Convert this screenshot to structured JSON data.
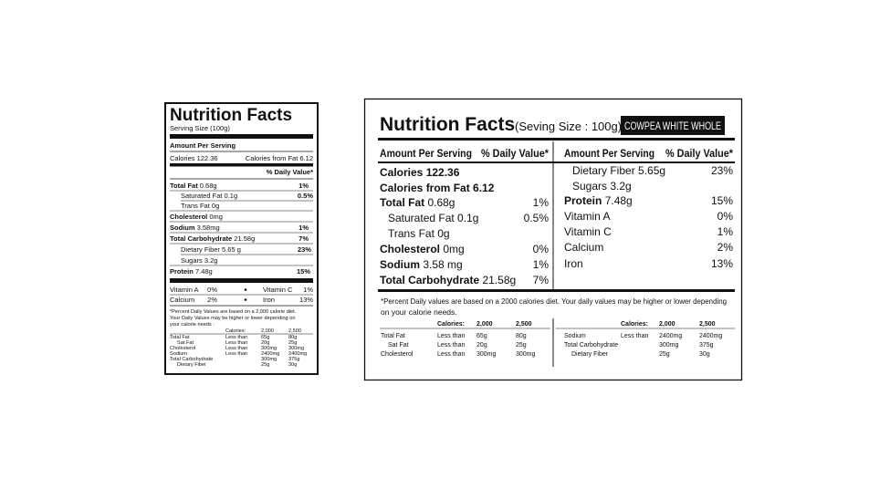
{
  "left_label": {
    "title": "Nutrition Facts",
    "serving": "Serving Size (100g)",
    "amount_per_serving": "Amount Per Serving",
    "calories": "Calories 122.36",
    "calories_from_fat": "Calories from Fat 6.12",
    "daily_value_header": "% Daily Value*",
    "nutrients": [
      {
        "name": "Total Fat",
        "amount": "0.68g",
        "dv": "1%"
      },
      {
        "name": "Saturated Fat",
        "amount": "0.1g",
        "dv": "0.5%"
      },
      {
        "name": "Trans Fat",
        "amount": "0g"
      },
      {
        "name": "Cholesterol",
        "amount": "0mg"
      },
      {
        "name": "Sodium",
        "amount": "3.58mg",
        "dv": "1%"
      },
      {
        "name": "Total Carbohydrate",
        "amount": "21.58g",
        "dv": "7%"
      },
      {
        "name": "Dietary Fiber",
        "amount": "5.65 g",
        "dv": "23%"
      },
      {
        "name": "Sugars",
        "amount": "3.2g"
      },
      {
        "name": "Protein",
        "amount": "7.48g",
        "dv": "15%"
      }
    ],
    "vitamins": [
      [
        "Vitamin A",
        "0%",
        "Vitamin C",
        "1%"
      ],
      [
        "Calcium",
        "2%",
        "Iron",
        "13%"
      ]
    ],
    "footnote_lines": [
      "*Percent Daily Values are based on a 2,000 calorie diet.",
      "Your Daily Values may be higher or lower depending on",
      "your calorie needs :"
    ],
    "dv_table": {
      "header": [
        "Calories:",
        "2,000",
        "2,500"
      ],
      "rows": [
        [
          "Total Fat",
          "Less than",
          "65g",
          "80g"
        ],
        [
          "Sat Fat",
          "Less than",
          "20g",
          "25g"
        ],
        [
          "Cholesterol",
          "Less than",
          "300mg",
          "300mg"
        ],
        [
          "Sodium",
          "Less than",
          "2400mg",
          "2400mg"
        ],
        [
          "Total Carbohydrate",
          "300mg",
          "375g"
        ],
        [
          "Dietary Fiber",
          "25g",
          "30g"
        ]
      ]
    }
  },
  "right_label": {
    "title": "Nutrition Facts",
    "serving": "(Seving Size : 100g)",
    "product": "COWPEA WHITE WHOLE",
    "columns": [
      {
        "amount_header": "Amount Per Serving",
        "dv_header": "% Daily Value*",
        "rows": [
          {
            "name": "Calories 122.36"
          },
          {
            "name": "Calories from Fat 6.12"
          },
          {
            "name": "Total Fat",
            "amount": "0.68g",
            "dv": "1%"
          },
          {
            "name": "Saturated Fat 0.1g",
            "dv": "0.5%"
          },
          {
            "name": "Trans Fat 0g"
          },
          {
            "name": "Cholesterol",
            "amount": "0mg",
            "dv": "0%"
          },
          {
            "name": "Sodium",
            "amount": "3.58 mg",
            "dv": "1%"
          },
          {
            "name": "Total Carbohydrate",
            "amount": "21.58g",
            "dv": "7%"
          }
        ]
      },
      {
        "amount_header": "Amount Per Serving",
        "dv_header": "% Daily Value*",
        "rows": [
          {
            "name": "Dietary Fiber 5.65g",
            "dv": "23%"
          },
          {
            "name": "Sugars 3.2g"
          },
          {
            "name": "Protein",
            "amount": "7.48g",
            "dv": "15%"
          },
          {
            "name": "Vitamin A",
            "dv": "0%"
          },
          {
            "name": "Vitamin C",
            "dv": "1%"
          },
          {
            "name": "Calcium",
            "dv": "2%"
          },
          {
            "name": "Iron",
            "dv": "13%"
          }
        ]
      }
    ],
    "footnote_lines": [
      "*Percent Daily values are based on a 2000 calories diet. Your daily values may be higher or lower depending",
      "on your calorie needs."
    ],
    "dv_tables": [
      {
        "header": [
          "Calories:",
          "2,000",
          "2,500"
        ],
        "rows": [
          [
            "Total Fat",
            "Less than",
            "65g",
            "80g"
          ],
          [
            "Sat Fat",
            "Less than",
            "20g",
            "25g"
          ],
          [
            "Cholesterol",
            "Less than",
            "300mg",
            "300mg"
          ]
        ]
      },
      {
        "header": [
          "Calories:",
          "2,000",
          "2,500"
        ],
        "rows": [
          [
            "Sodium",
            "Less than",
            "2400mg",
            "2400mg"
          ],
          [
            "Total Carbohydrate",
            "300mg",
            "375g"
          ],
          [
            "Dietary Fiber",
            "25g",
            "30g"
          ]
        ]
      }
    ]
  }
}
